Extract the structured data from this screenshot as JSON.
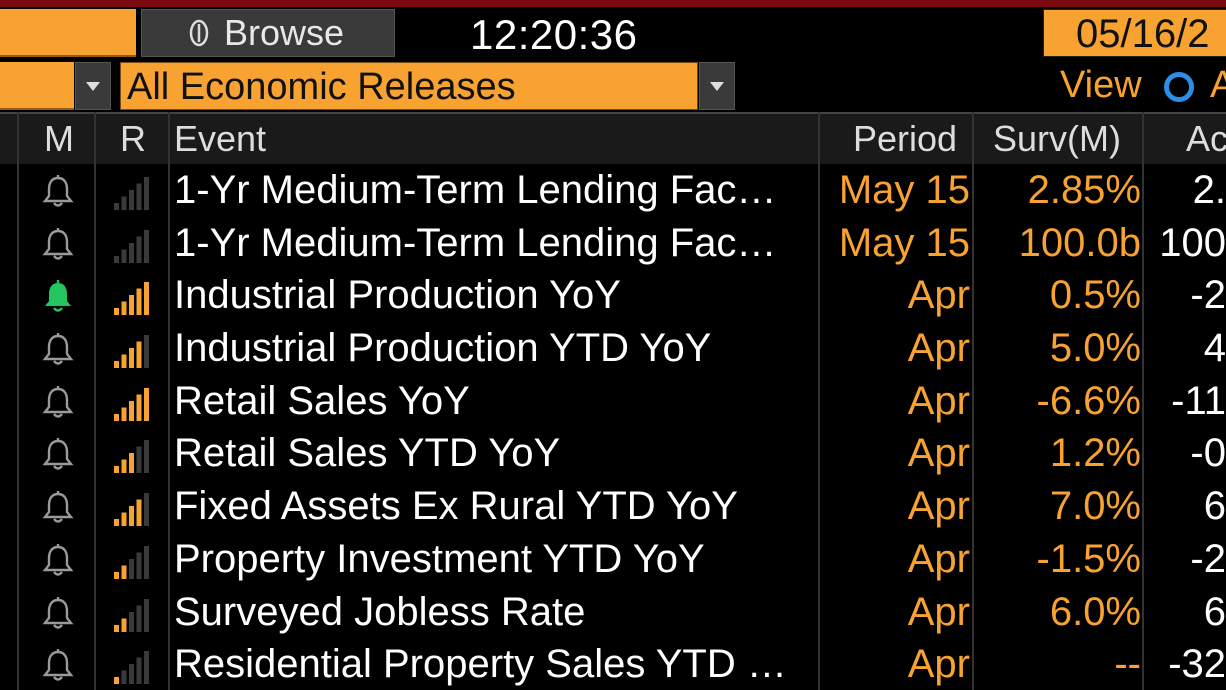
{
  "toolbar": {
    "browse_label": "Browse",
    "clock": "12:20:36",
    "date_value": "05/16/2",
    "filter_value": "All Economic Releases",
    "view_label": "View",
    "view_option_label": "A"
  },
  "table": {
    "headers": {
      "m": "M",
      "r": "R",
      "event": "Event",
      "period": "Period",
      "surv": "Surv(M)",
      "actual": "Ac"
    },
    "rows": [
      {
        "event": "1-Yr Medium-Term Lending Fac…",
        "period": "May 15",
        "surv": "2.85%",
        "actual": "2.",
        "bell": "gray",
        "relevance": 0
      },
      {
        "event": "1-Yr Medium-Term Lending Fac…",
        "period": "May 15",
        "surv": "100.0b",
        "actual": "100",
        "bell": "gray",
        "relevance": 0
      },
      {
        "event": "Industrial Production YoY",
        "period": "Apr",
        "surv": "0.5%",
        "actual": "-2",
        "bell": "green",
        "relevance": 5
      },
      {
        "event": "Industrial Production YTD YoY",
        "period": "Apr",
        "surv": "5.0%",
        "actual": "4",
        "bell": "gray",
        "relevance": 4
      },
      {
        "event": "Retail Sales YoY",
        "period": "Apr",
        "surv": "-6.6%",
        "actual": "-11",
        "bell": "gray",
        "relevance": 5
      },
      {
        "event": "Retail Sales YTD YoY",
        "period": "Apr",
        "surv": "1.2%",
        "actual": "-0",
        "bell": "gray",
        "relevance": 3
      },
      {
        "event": "Fixed Assets Ex Rural YTD YoY",
        "period": "Apr",
        "surv": "7.0%",
        "actual": "6",
        "bell": "gray",
        "relevance": 4
      },
      {
        "event": "Property Investment YTD YoY",
        "period": "Apr",
        "surv": "-1.5%",
        "actual": "-2",
        "bell": "gray",
        "relevance": 2
      },
      {
        "event": "Surveyed Jobless Rate",
        "period": "Apr",
        "surv": "6.0%",
        "actual": "6",
        "bell": "gray",
        "relevance": 2
      },
      {
        "event": "Residential Property Sales YTD …",
        "period": "Apr",
        "surv": "--",
        "actual": "-32",
        "bell": "gray",
        "relevance": 1
      }
    ]
  },
  "colors": {
    "orange": "#f8a232",
    "bell_green": "#22c55e",
    "bell_gray": "#9a9a9a",
    "bar_on": "#f8a232",
    "bar_off": "#3a3a3a",
    "radio_blue": "#2b8fe8"
  },
  "icons": {
    "bell": "bell-icon",
    "relevance": "signal-bars-icon",
    "browse": "browse-icon"
  }
}
